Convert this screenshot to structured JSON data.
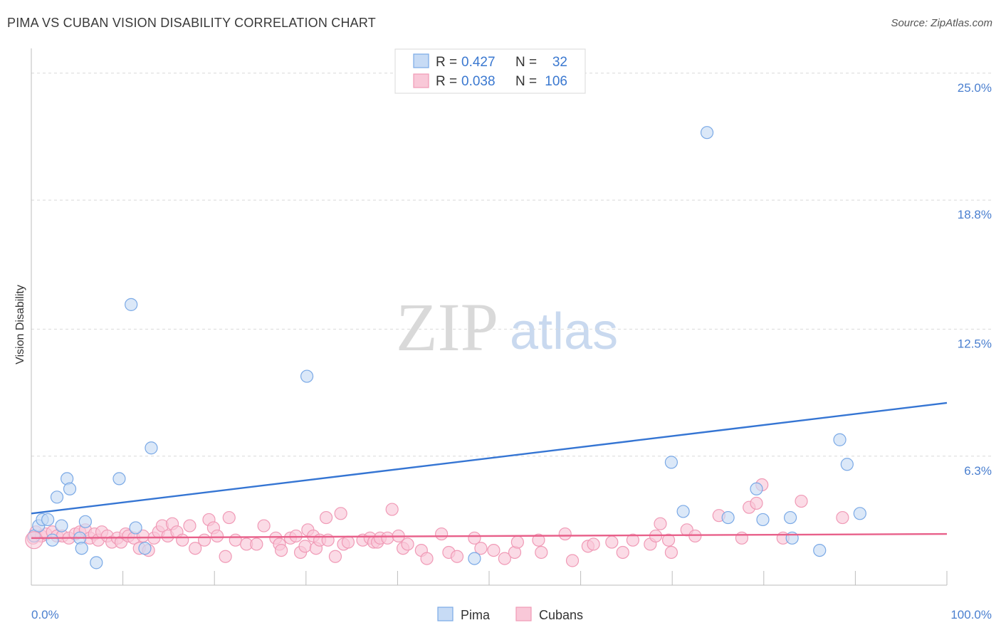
{
  "title": "PIMA VS CUBAN VISION DISABILITY CORRELATION CHART",
  "source": "Source: ZipAtlas.com",
  "watermark": {
    "zip": "ZIP",
    "atlas": "atlas"
  },
  "chart_data": {
    "type": "scatter",
    "ylabel": "Vision Disability",
    "xlim": [
      0,
      100
    ],
    "ylim": [
      0,
      26
    ],
    "y_ticks": [
      {
        "value": 25.0,
        "label": "25.0%"
      },
      {
        "value": 18.8,
        "label": "18.8%"
      },
      {
        "value": 12.5,
        "label": "12.5%"
      },
      {
        "value": 6.3,
        "label": "6.3%"
      }
    ],
    "x_tick_labels": {
      "min": "0.0%",
      "max": "100.0%"
    },
    "grid": true,
    "legend_placement": "top-center",
    "legend": [
      {
        "r_label": "R =",
        "r": "0.427",
        "n_label": "N =",
        "n": "32"
      },
      {
        "r_label": "R =",
        "r": "0.038",
        "n_label": "N =",
        "n": "106"
      }
    ],
    "series": [
      {
        "name": "Pima",
        "color": "#7aa9e6",
        "fill": "#c7dbf5",
        "line_color": "#3575d3",
        "trend": [
          [
            0,
            3.5
          ],
          [
            100,
            8.9
          ]
        ],
        "points": [
          [
            0.3,
            2.4
          ],
          [
            0.8,
            2.9
          ],
          [
            1.2,
            3.2
          ],
          [
            1.8,
            3.2
          ],
          [
            2.3,
            2.2
          ],
          [
            2.8,
            4.3
          ],
          [
            3.3,
            2.9
          ],
          [
            3.9,
            5.2
          ],
          [
            4.2,
            4.7
          ],
          [
            5.3,
            2.3
          ],
          [
            5.5,
            1.8
          ],
          [
            5.9,
            3.1
          ],
          [
            7.1,
            1.1
          ],
          [
            9.6,
            5.2
          ],
          [
            10.9,
            13.7
          ],
          [
            11.4,
            2.8
          ],
          [
            12.4,
            1.8
          ],
          [
            13.1,
            6.7
          ],
          [
            30.1,
            10.2
          ],
          [
            48.4,
            1.3
          ],
          [
            69.9,
            6.0
          ],
          [
            71.2,
            3.6
          ],
          [
            73.8,
            22.1
          ],
          [
            76.1,
            3.3
          ],
          [
            79.2,
            4.7
          ],
          [
            79.9,
            3.2
          ],
          [
            82.9,
            3.3
          ],
          [
            83.1,
            2.3
          ],
          [
            86.1,
            1.7
          ],
          [
            88.3,
            7.1
          ],
          [
            89.1,
            5.9
          ],
          [
            90.5,
            3.5
          ]
        ]
      },
      {
        "name": "Cubans",
        "color": "#f09ab6",
        "fill": "#f9c8d8",
        "line_color": "#e8608a",
        "trend": [
          [
            0,
            2.3
          ],
          [
            100,
            2.5
          ]
        ],
        "points": [
          [
            0.2,
            2.3
          ],
          [
            0.5,
            2.6
          ],
          [
            1.1,
            2.4
          ],
          [
            1.6,
            2.5
          ],
          [
            2.3,
            2.6
          ],
          [
            2.8,
            2.4
          ],
          [
            3.4,
            2.4
          ],
          [
            4.1,
            2.3
          ],
          [
            4.8,
            2.5
          ],
          [
            5.3,
            2.6
          ],
          [
            5.9,
            2.7
          ],
          [
            6.4,
            2.3
          ],
          [
            6.9,
            2.5
          ],
          [
            7.3,
            2.2
          ],
          [
            7.7,
            2.6
          ],
          [
            8.3,
            2.4
          ],
          [
            8.8,
            2.1
          ],
          [
            9.4,
            2.3
          ],
          [
            9.8,
            2.1
          ],
          [
            10.3,
            2.5
          ],
          [
            10.6,
            2.4
          ],
          [
            11.2,
            2.3
          ],
          [
            11.8,
            1.8
          ],
          [
            12.2,
            2.4
          ],
          [
            12.8,
            1.7
          ],
          [
            13.4,
            2.3
          ],
          [
            13.9,
            2.6
          ],
          [
            14.3,
            2.9
          ],
          [
            14.9,
            2.4
          ],
          [
            15.4,
            3.0
          ],
          [
            15.9,
            2.6
          ],
          [
            16.5,
            2.2
          ],
          [
            17.3,
            2.9
          ],
          [
            17.9,
            1.8
          ],
          [
            18.9,
            2.2
          ],
          [
            19.4,
            3.2
          ],
          [
            19.9,
            2.8
          ],
          [
            20.3,
            2.4
          ],
          [
            21.2,
            1.4
          ],
          [
            21.6,
            3.3
          ],
          [
            22.3,
            2.2
          ],
          [
            23.5,
            2.0
          ],
          [
            24.6,
            2.0
          ],
          [
            25.4,
            2.9
          ],
          [
            26.7,
            2.3
          ],
          [
            27.1,
            2.0
          ],
          [
            27.3,
            1.7
          ],
          [
            28.3,
            2.3
          ],
          [
            28.9,
            2.4
          ],
          [
            29.4,
            1.6
          ],
          [
            29.9,
            1.9
          ],
          [
            30.2,
            2.7
          ],
          [
            30.8,
            2.4
          ],
          [
            31.1,
            1.8
          ],
          [
            31.5,
            2.2
          ],
          [
            32.2,
            3.3
          ],
          [
            32.4,
            2.2
          ],
          [
            33.2,
            1.4
          ],
          [
            33.8,
            3.5
          ],
          [
            34.1,
            2.0
          ],
          [
            34.6,
            2.1
          ],
          [
            36.2,
            2.2
          ],
          [
            37.0,
            2.3
          ],
          [
            37.4,
            2.1
          ],
          [
            37.8,
            2.1
          ],
          [
            38.1,
            2.3
          ],
          [
            38.9,
            2.3
          ],
          [
            39.4,
            3.7
          ],
          [
            40.1,
            2.4
          ],
          [
            40.6,
            1.8
          ],
          [
            41.1,
            2.0
          ],
          [
            42.6,
            1.7
          ],
          [
            43.2,
            1.3
          ],
          [
            44.8,
            2.5
          ],
          [
            45.6,
            1.6
          ],
          [
            46.5,
            1.4
          ],
          [
            48.4,
            2.3
          ],
          [
            49.1,
            1.8
          ],
          [
            50.5,
            1.7
          ],
          [
            51.7,
            1.3
          ],
          [
            52.8,
            1.6
          ],
          [
            53.1,
            2.1
          ],
          [
            55.4,
            2.2
          ],
          [
            55.7,
            1.6
          ],
          [
            58.3,
            2.5
          ],
          [
            59.1,
            1.2
          ],
          [
            60.8,
            1.9
          ],
          [
            61.4,
            2.0
          ],
          [
            63.4,
            2.1
          ],
          [
            64.6,
            1.6
          ],
          [
            65.7,
            2.2
          ],
          [
            67.6,
            2.0
          ],
          [
            68.2,
            2.4
          ],
          [
            68.7,
            3.0
          ],
          [
            69.6,
            2.2
          ],
          [
            69.9,
            1.6
          ],
          [
            71.6,
            2.7
          ],
          [
            72.5,
            2.4
          ],
          [
            75.1,
            3.4
          ],
          [
            77.6,
            2.3
          ],
          [
            78.4,
            3.8
          ],
          [
            79.2,
            4.0
          ],
          [
            79.8,
            4.9
          ],
          [
            82.1,
            2.3
          ],
          [
            84.1,
            4.1
          ],
          [
            88.6,
            3.3
          ]
        ]
      }
    ]
  }
}
